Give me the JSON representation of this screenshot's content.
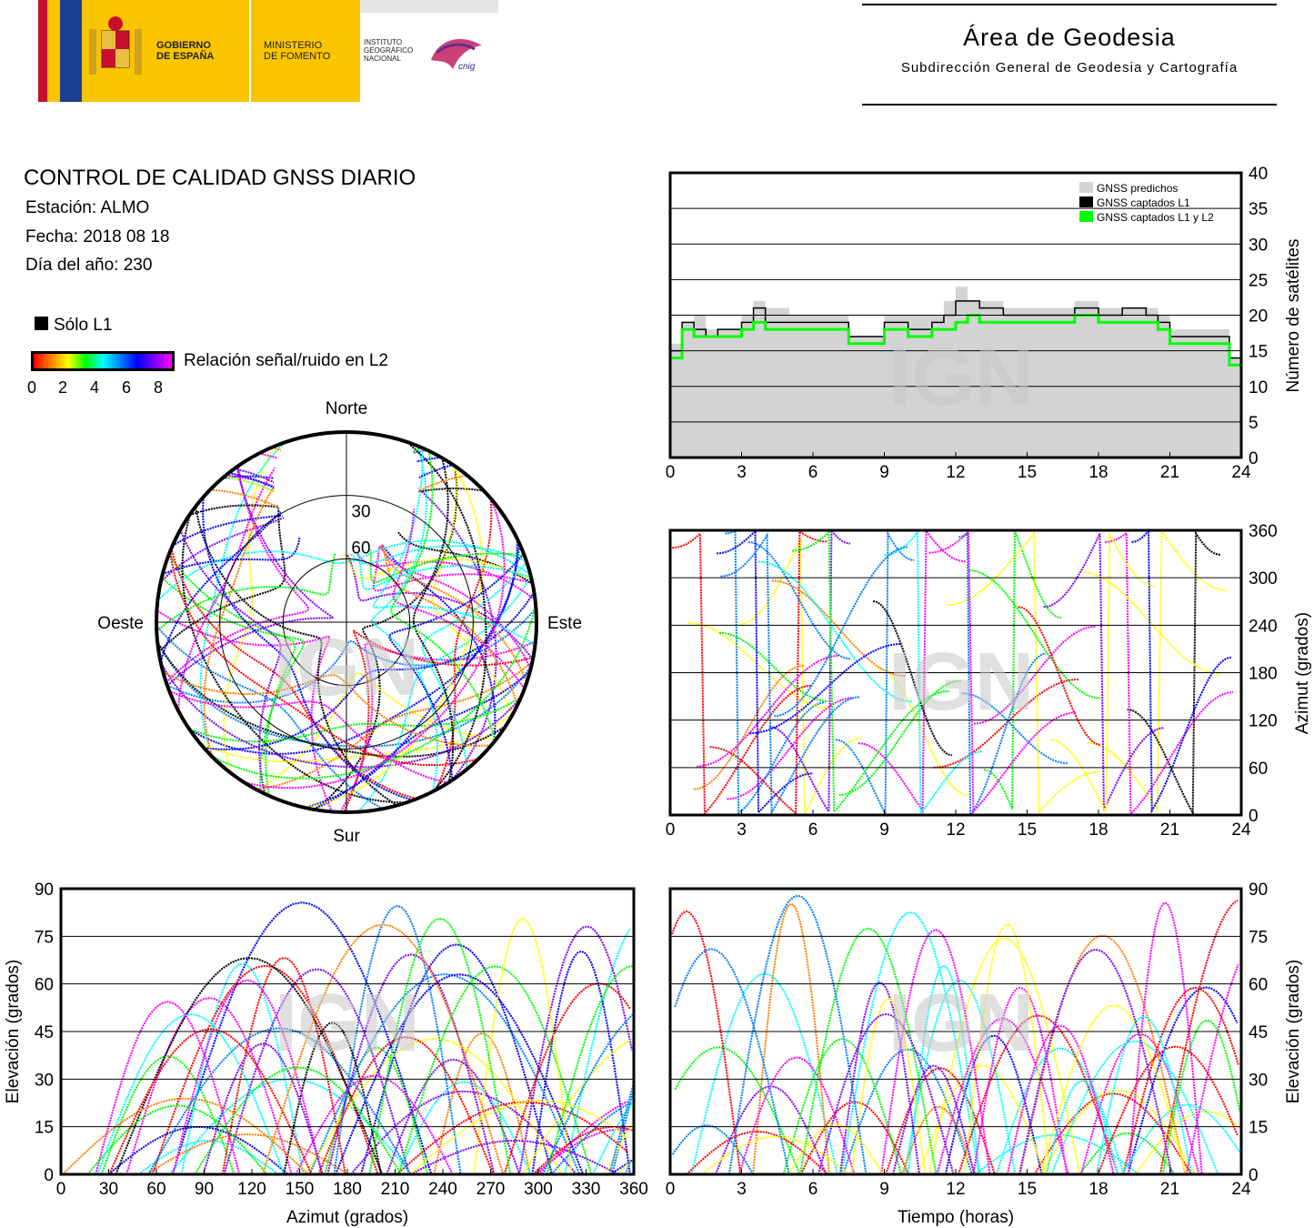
{
  "header": {
    "gobierno": [
      "GOBIERNO",
      "DE ESPAÑA"
    ],
    "ministerio": [
      "MINISTERIO",
      "DE FOMENTO"
    ],
    "instituto": [
      "INSTITUTO",
      "GEOGRÁFICO",
      "NACIONAL"
    ],
    "cnig_logo": "cnig",
    "area_title": "Área de Geodesia",
    "area_subtitle": "Subdirección General de Geodesia y Cartografía"
  },
  "report": {
    "title": "CONTROL DE CALIDAD GNSS DIARIO",
    "station": "Estación: ALMO",
    "date": "Fecha: 2018 08 18",
    "doy": "Día del año: 230"
  },
  "legend": {
    "l1_only": "Sólo L1",
    "snr_label": "Relación señal/ruido en L2",
    "snr_ticks": [
      "0",
      "2",
      "4",
      "6",
      "8"
    ],
    "colorscale": [
      "#ff0000",
      "#ff7f00",
      "#ffff00",
      "#00ff00",
      "#00ffff",
      "#0080ff",
      "#0000ff",
      "#8000ff",
      "#ff00ff"
    ]
  },
  "watermark": "IGN",
  "chart_data": [
    {
      "id": "skyplot",
      "type": "scatter",
      "projection": "polar",
      "direction_labels": {
        "north": "Norte",
        "south": "Sur",
        "west": "Oeste",
        "east": "Este"
      },
      "ring_labels": [
        "30",
        "60"
      ],
      "grid": true,
      "description_series": "satellite tracks colored by L2 SNR"
    },
    {
      "id": "satellite_count",
      "type": "area",
      "ylabel": "Número de satélites",
      "xlim": [
        0,
        24
      ],
      "ylim": [
        0,
        40
      ],
      "xticks": [
        "0",
        "3",
        "6",
        "9",
        "12",
        "15",
        "18",
        "21",
        "24"
      ],
      "yticks": [
        "0",
        "5",
        "10",
        "15",
        "20",
        "25",
        "30",
        "35",
        "40"
      ],
      "legend_position": "top-right",
      "series": [
        {
          "name": "GNSS predichos",
          "color": "#d3d3d3",
          "x": [
            0,
            0.5,
            1,
            1.5,
            2,
            3,
            3.5,
            4,
            5,
            6,
            7,
            7.5,
            8,
            9,
            10,
            11,
            11.5,
            12,
            12.5,
            13,
            14,
            15,
            16,
            17,
            18,
            19,
            20,
            20.5,
            21,
            22,
            23,
            23.5,
            24
          ],
          "values": [
            16,
            19,
            20,
            18,
            18,
            20,
            22,
            21,
            20,
            20,
            20,
            17,
            17,
            20,
            20,
            20,
            22,
            24,
            22,
            22,
            21,
            21,
            21,
            22,
            21,
            21,
            21,
            20,
            18,
            18,
            18,
            14,
            14
          ]
        },
        {
          "name": "GNSS captados L1",
          "color": "#000000",
          "x": [
            0,
            0.5,
            1,
            1.5,
            2,
            3,
            3.5,
            4,
            5,
            6,
            7,
            7.5,
            8,
            9,
            10,
            11,
            11.5,
            12,
            12.5,
            13,
            14,
            15,
            16,
            17,
            18,
            19,
            20,
            20.5,
            21,
            22,
            23,
            23.5,
            24
          ],
          "values": [
            15,
            19,
            18,
            17,
            18,
            19,
            21,
            19,
            19,
            19,
            19,
            17,
            17,
            19,
            18,
            19,
            20,
            22,
            22,
            21,
            20,
            20,
            20,
            21,
            20,
            21,
            20,
            19,
            17,
            17,
            17,
            14,
            13
          ]
        },
        {
          "name": "GNSS captados L1 y L2",
          "color": "#00ff00",
          "x": [
            0,
            0.5,
            1,
            1.5,
            2,
            3,
            3.5,
            4,
            5,
            6,
            7,
            7.5,
            8,
            9,
            10,
            11,
            11.5,
            12,
            12.5,
            13,
            14,
            15,
            16,
            17,
            18,
            19,
            20,
            20.5,
            21,
            22,
            23,
            23.5,
            24
          ],
          "values": [
            14,
            18,
            17,
            17,
            17,
            18,
            19,
            18,
            18,
            18,
            18,
            16,
            16,
            18,
            17,
            18,
            18,
            19,
            20,
            19,
            19,
            19,
            19,
            20,
            19,
            19,
            19,
            18,
            16,
            16,
            16,
            13,
            12
          ]
        }
      ]
    },
    {
      "id": "azimuth_time",
      "type": "scatter",
      "ylabel": "Azimut (grados)",
      "xlim": [
        0,
        24
      ],
      "ylim": [
        0,
        360
      ],
      "xticks": [
        "0",
        "3",
        "6",
        "9",
        "12",
        "15",
        "18",
        "21",
        "24"
      ],
      "yticks": [
        "0",
        "60",
        "120",
        "180",
        "240",
        "300",
        "360"
      ]
    },
    {
      "id": "elevation_azimuth",
      "type": "scatter",
      "xlabel": "Azimut (grados)",
      "ylabel": "Elevación (grados)",
      "xlim": [
        0,
        360
      ],
      "ylim": [
        0,
        90
      ],
      "xticks": [
        "0",
        "30",
        "60",
        "90",
        "120",
        "150",
        "180",
        "210",
        "240",
        "270",
        "300",
        "330",
        "360"
      ],
      "yticks": [
        "0",
        "15",
        "30",
        "45",
        "60",
        "75",
        "90"
      ]
    },
    {
      "id": "elevation_time",
      "type": "scatter",
      "xlabel": "Tiempo (horas)",
      "ylabel": "Elevación (grados)",
      "xlim": [
        0,
        24
      ],
      "ylim": [
        0,
        90
      ],
      "xticks": [
        "0",
        "3",
        "6",
        "9",
        "12",
        "15",
        "18",
        "21",
        "24"
      ],
      "yticks": [
        "0",
        "15",
        "30",
        "45",
        "60",
        "75",
        "90"
      ]
    }
  ]
}
